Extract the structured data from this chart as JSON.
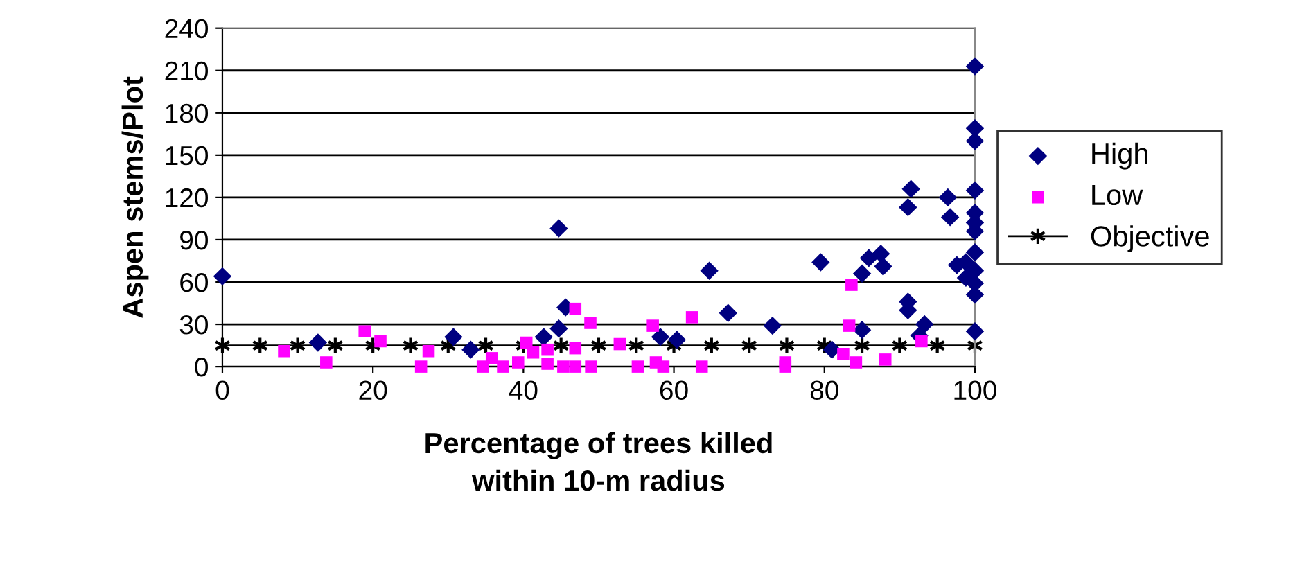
{
  "chart_data": {
    "type": "scatter",
    "xlabel": "Percentage of trees killed\nwithin 10-m radius",
    "ylabel": "Aspen stems/Plot",
    "xlim": [
      0,
      100
    ],
    "xticks": [
      0,
      20,
      40,
      60,
      80,
      100
    ],
    "ylim": [
      0,
      240
    ],
    "yticks": [
      0,
      30,
      60,
      90,
      120,
      150,
      180,
      210,
      240
    ],
    "grid": "y",
    "legend": "right",
    "series": [
      {
        "name": "High",
        "color": "#000080",
        "marker": "diamond",
        "x": [
          0,
          12.7,
          30.7,
          33,
          42.7,
          44.7,
          44.7,
          45.6,
          58.2,
          60.4,
          64.7,
          67.2,
          73.1,
          79.5,
          81,
          85,
          85,
          85.9,
          87.5,
          87.8,
          91.5,
          91.1,
          91.1,
          91.1,
          93.3,
          92.6,
          96.4,
          96.7,
          100,
          100,
          100,
          100,
          100,
          100,
          100,
          100,
          97.6,
          98.8,
          100,
          98.8,
          100,
          100,
          100
        ],
        "values": [
          64,
          17,
          21,
          12,
          21,
          27,
          98,
          42,
          21,
          19,
          68,
          38,
          29,
          74,
          12,
          26,
          66,
          77,
          80,
          71,
          126,
          113,
          46,
          40,
          30,
          22,
          120,
          106,
          213,
          169,
          160,
          125,
          109,
          102,
          96,
          81,
          72,
          74,
          68,
          63,
          59,
          51,
          25
        ]
      },
      {
        "name": "Low",
        "color": "#ff00ff",
        "marker": "square",
        "x": [
          8.2,
          13.8,
          18.9,
          21,
          26.4,
          27.4,
          34.6,
          35.8,
          37.3,
          39.3,
          40.4,
          41.3,
          43.2,
          43.2,
          45.3,
          46.9,
          46.9,
          46.9,
          48.9,
          49,
          52.8,
          55.2,
          57.2,
          57.6,
          58.6,
          62.4,
          63.7,
          74.8,
          74.8,
          83.6,
          83.3,
          82.5,
          84.2,
          88.1,
          92.9
        ],
        "values": [
          11,
          3,
          25,
          18,
          0,
          11,
          0,
          6,
          0,
          3,
          17,
          10,
          12,
          2,
          0,
          41,
          13,
          0,
          31,
          0,
          16,
          0,
          29,
          3,
          0,
          35,
          0,
          3,
          0,
          58,
          29,
          9,
          3,
          5,
          18
        ]
      },
      {
        "name": "Objective",
        "type": "line",
        "color": "#000000",
        "marker": "cross",
        "line_style": "solid",
        "x": [
          0,
          5,
          10,
          15,
          20,
          25,
          30,
          35,
          40,
          45,
          50,
          55,
          60,
          65,
          70,
          75,
          80,
          85,
          90,
          95,
          100
        ],
        "values": [
          15,
          15,
          15,
          15,
          15,
          15,
          15,
          15,
          15,
          15,
          15,
          15,
          15,
          15,
          15,
          15,
          15,
          15,
          15,
          15,
          15
        ]
      }
    ]
  }
}
